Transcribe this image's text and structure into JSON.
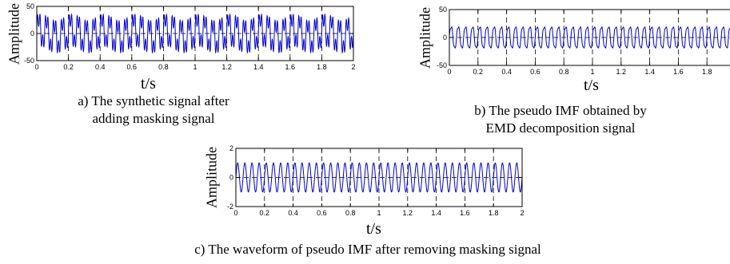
{
  "chart_data": [
    {
      "type": "line",
      "xlabel": "t/s",
      "ylabel": "Amplitude",
      "xlim": [
        0,
        2
      ],
      "ylim": [
        -50,
        50
      ],
      "xticks": [
        "0",
        "0.2",
        "0.4",
        "0.6",
        "0.8",
        "1",
        "1.2",
        "1.4",
        "1.6",
        "1.8",
        "2"
      ],
      "yticks": [
        "50",
        "0",
        "-50"
      ],
      "grid": true,
      "series": [
        {
          "color": "#0000cc",
          "components": [
            {
              "amp": 24,
              "freq": 20,
              "phase": 0
            },
            {
              "amp": 16,
              "freq": 60,
              "phase": 0
            },
            {
              "amp": 6,
              "freq": 5,
              "phase": 0.8
            }
          ]
        }
      ],
      "caption": [
        "a) The synthetic signal after",
        "adding masking signal"
      ]
    },
    {
      "type": "line",
      "xlabel": "t/s",
      "ylabel": "Amplitude",
      "xlim": [
        0,
        2
      ],
      "ylim": [
        -50,
        50
      ],
      "xticks": [
        "0",
        "0.2",
        "0.4",
        "0.6",
        "0.8",
        "1",
        "1.2",
        "1.4",
        "1.6",
        "1.8",
        "2"
      ],
      "yticks": [
        "50",
        "0",
        "-50"
      ],
      "grid": true,
      "series": [
        {
          "color": "#0000cc",
          "components": [
            {
              "amp": 20,
              "freq": 20,
              "phase": 0
            },
            {
              "amp": 3,
              "freq": 60,
              "phase": 0.5
            }
          ]
        }
      ],
      "caption": [
        "b) The pseudo IMF obtained by",
        "EMD decomposition signal"
      ]
    },
    {
      "type": "line",
      "xlabel": "t/s",
      "ylabel": "Amplitude",
      "xlim": [
        0,
        2
      ],
      "ylim": [
        -2,
        2
      ],
      "xticks": [
        "0",
        "0.2",
        "0.4",
        "0.6",
        "0.8",
        "1",
        "1.2",
        "1.4",
        "1.6",
        "1.8",
        "2"
      ],
      "yticks": [
        "2",
        "0",
        "-2"
      ],
      "grid": true,
      "series": [
        {
          "color": "#0000cc",
          "components": [
            {
              "amp": 1,
              "freq": 20,
              "phase": 0
            }
          ]
        }
      ],
      "caption": [
        "c) The waveform of pseudo IMF after removing masking signal"
      ]
    }
  ]
}
